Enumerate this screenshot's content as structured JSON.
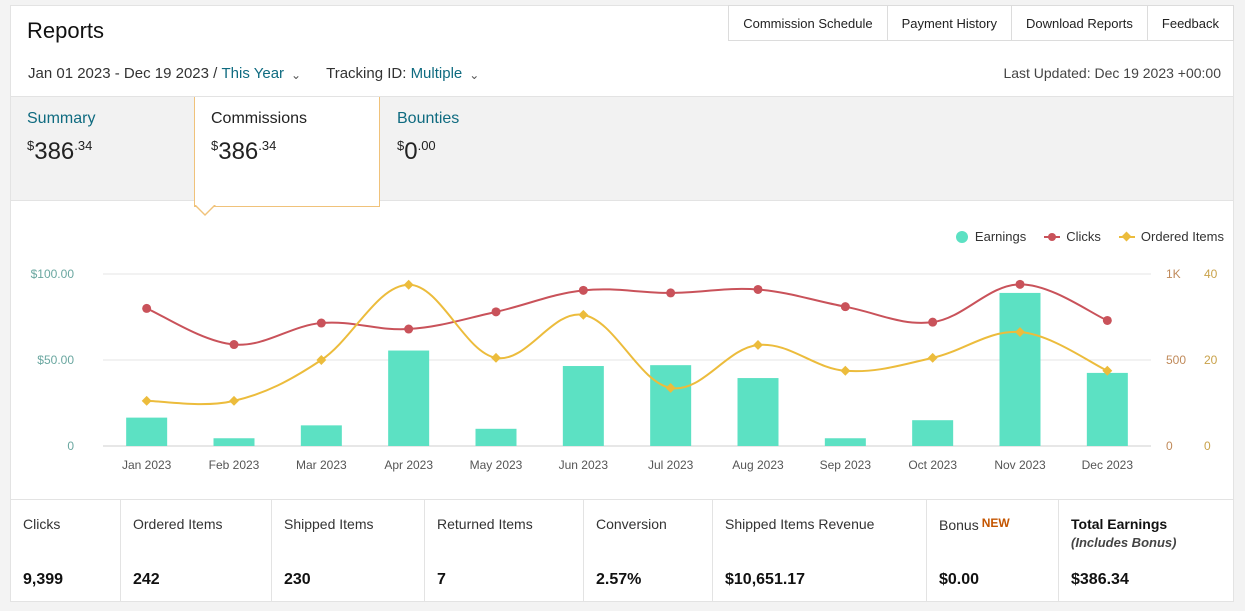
{
  "header": {
    "title": "Reports",
    "links": [
      "Commission Schedule",
      "Payment History",
      "Download Reports",
      "Feedback"
    ]
  },
  "filters": {
    "date_range": "Jan 01 2023 - Dec 19 2023 /",
    "date_preset": "This Year",
    "tracking_label": "Tracking ID:",
    "tracking_value": "Multiple",
    "chevron_icon": "chevron-down-icon",
    "last_updated": "Last Updated: Dec 19 2023 +00:00"
  },
  "tabs": [
    {
      "label": "Summary",
      "currency": "$",
      "whole": "386",
      "cents": ".34",
      "active": false
    },
    {
      "label": "Commissions",
      "currency": "$",
      "whole": "386",
      "cents": ".34",
      "active": true
    },
    {
      "label": "Bounties",
      "currency": "$",
      "whole": "0",
      "cents": ".00",
      "active": false
    }
  ],
  "colors": {
    "earnings": "#5ce1c3",
    "clicks": "#c9525a",
    "ordered": "#ecbc3c",
    "link": "#0f6b80",
    "tab_border": "#f0c27a"
  },
  "chart_data": {
    "type": "bar",
    "categories": [
      "Jan 2023",
      "Feb 2023",
      "Mar 2023",
      "Apr 2023",
      "May 2023",
      "Jun 2023",
      "Jul 2023",
      "Aug 2023",
      "Sep 2023",
      "Oct 2023",
      "Nov 2023",
      "Dec 2023"
    ],
    "legend": [
      "Earnings",
      "Clicks",
      "Ordered Items"
    ],
    "legend_position": "top-right",
    "left_axis": {
      "ticks": [
        "0",
        "$50.00",
        "$100.00"
      ],
      "range": [
        0,
        100
      ]
    },
    "clicks_axis": {
      "ticks": [
        "0",
        "500",
        "1K"
      ],
      "range": [
        0,
        1000
      ]
    },
    "ordered_axis": {
      "ticks": [
        "0",
        "20",
        "40"
      ],
      "range": [
        0,
        40
      ]
    },
    "grid": true,
    "series": [
      {
        "name": "Earnings",
        "type": "bar",
        "axis": "left",
        "values": [
          16.5,
          4.5,
          12,
          55.5,
          10,
          46.5,
          47,
          39.5,
          4.5,
          15,
          89,
          42.5
        ]
      },
      {
        "name": "Clicks",
        "type": "line",
        "axis": "clicks",
        "values": [
          800,
          590,
          715,
          680,
          780,
          905,
          890,
          910,
          810,
          720,
          940,
          730
        ]
      },
      {
        "name": "Ordered Items",
        "type": "line",
        "axis": "ordered",
        "values": [
          10.5,
          10.5,
          20,
          37.5,
          20.5,
          30.5,
          13.5,
          23.5,
          17.5,
          20.5,
          26.5,
          17.5
        ]
      }
    ]
  },
  "stats": [
    {
      "label": "Clicks",
      "value": "9,399"
    },
    {
      "label": "Ordered Items",
      "value": "242"
    },
    {
      "label": "Shipped Items",
      "value": "230"
    },
    {
      "label": "Returned Items",
      "value": "7"
    },
    {
      "label": "Conversion",
      "value": "2.57%"
    },
    {
      "label": "Shipped Items Revenue",
      "value": "$10,651.17"
    },
    {
      "label": "Bonus",
      "badge": "NEW",
      "value": "$0.00"
    },
    {
      "label": "Total Earnings",
      "sub": "(Includes Bonus)",
      "value": "$386.34"
    }
  ]
}
